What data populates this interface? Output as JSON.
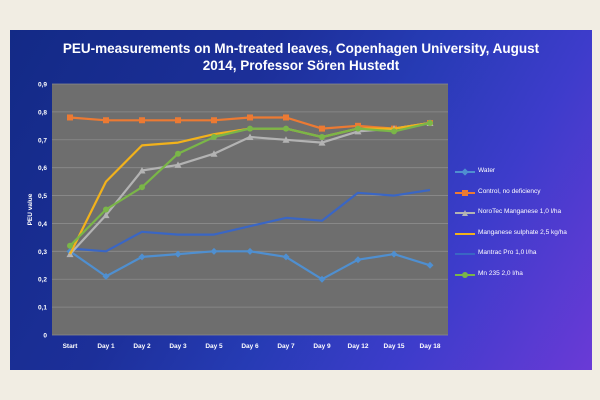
{
  "title_lines": [
    "PEU-measurements on Mn-treated leaves, Copenhagen University, August",
    "2014, Professor Sören Hustedt"
  ],
  "chart_data": {
    "type": "line",
    "title": "PEU-measurements on Mn-treated leaves, Copenhagen University, August 2014, Professor Sören Hustedt",
    "xlabel": "",
    "ylabel": "PEU value",
    "ylim": [
      0,
      0.9
    ],
    "yticks": [
      "0",
      "0,1",
      "0,2",
      "0,3",
      "0,4",
      "0,5",
      "0,6",
      "0,7",
      "0,8",
      "0,9"
    ],
    "grid": true,
    "legend_position": "right",
    "categories": [
      "Start",
      "Day 1",
      "Day 2",
      "Day 3",
      "Day 5",
      "Day 6",
      "Day 7",
      "Day 9",
      "Day 12",
      "Day 15",
      "Day 18"
    ],
    "series": [
      {
        "name": "Water",
        "color": "#4f8fd0",
        "marker": "diamond",
        "values": [
          0.3,
          0.21,
          0.28,
          0.29,
          0.3,
          0.3,
          0.28,
          0.2,
          0.27,
          0.29,
          0.25
        ]
      },
      {
        "name": "Control, no deficiency",
        "color": "#ec7a33",
        "marker": "square",
        "values": [
          0.78,
          0.77,
          0.77,
          0.77,
          0.77,
          0.78,
          0.78,
          0.74,
          0.75,
          0.74,
          0.76
        ]
      },
      {
        "name": "NoroTec Manganese 1,0 l/ha",
        "color": "#b3b3b3",
        "marker": "triangle",
        "values": [
          0.29,
          0.43,
          0.59,
          0.61,
          0.65,
          0.71,
          0.7,
          0.69,
          0.73,
          0.74,
          0.76
        ]
      },
      {
        "name": "Manganese sulphate 2,5 kg/ha",
        "color": "#f2b21b",
        "marker": "none",
        "values": [
          0.29,
          0.55,
          0.68,
          0.69,
          0.72,
          0.74,
          0.74,
          0.71,
          0.74,
          0.74,
          0.76
        ]
      },
      {
        "name": "Mantrac Pro 1,0 l/ha",
        "color": "#3a66c4",
        "marker": "none",
        "values": [
          0.31,
          0.3,
          0.37,
          0.36,
          0.36,
          0.39,
          0.42,
          0.41,
          0.51,
          0.5,
          0.52
        ]
      },
      {
        "name": "Mn 235 2,0 l/ha",
        "color": "#7ab648",
        "marker": "circle",
        "values": [
          0.32,
          0.45,
          0.53,
          0.65,
          0.71,
          0.74,
          0.74,
          0.71,
          0.74,
          0.73,
          0.76
        ]
      }
    ]
  }
}
